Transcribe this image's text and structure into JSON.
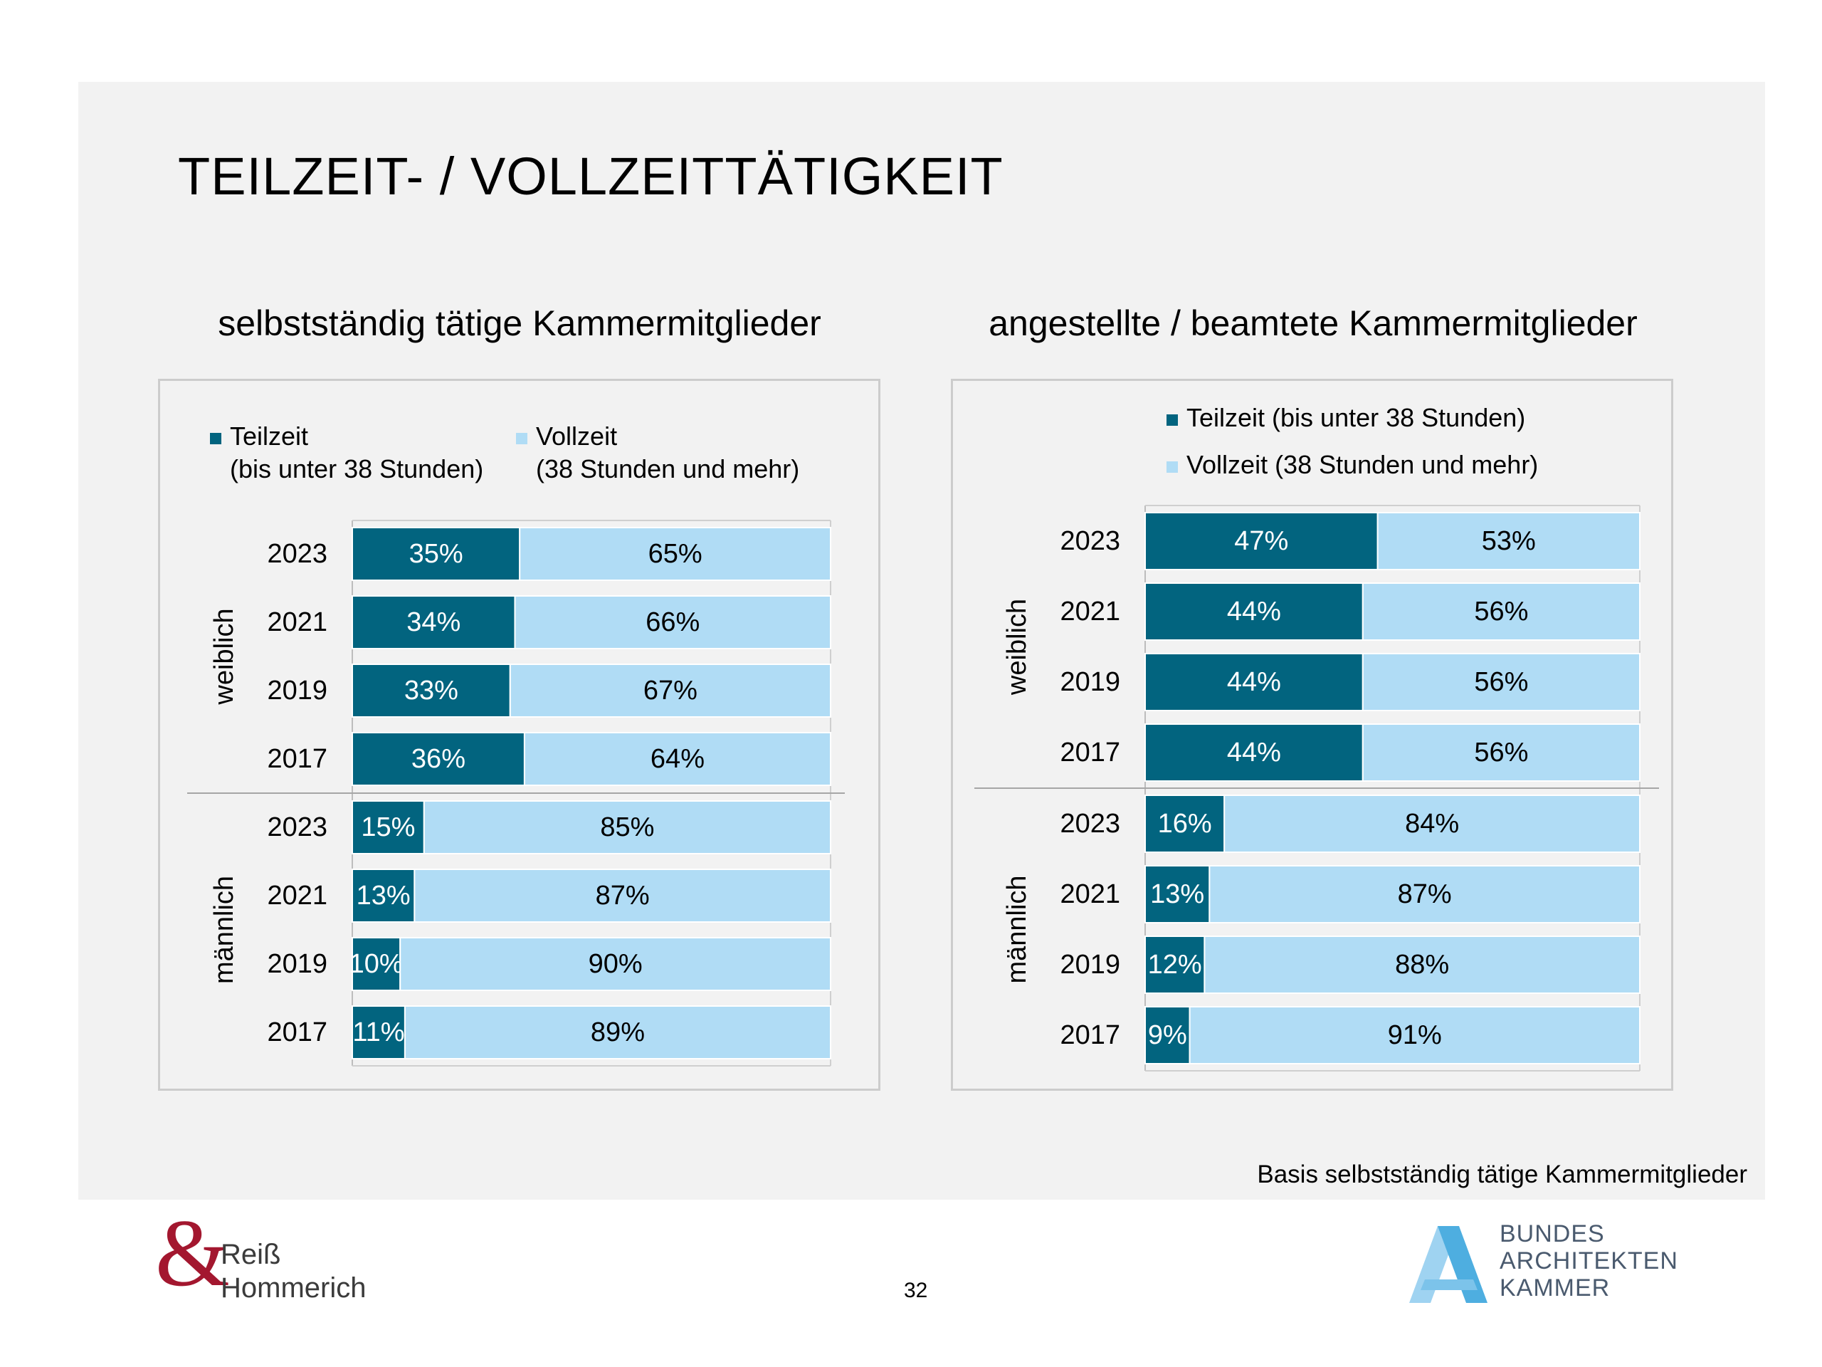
{
  "slide": {
    "title": "TEILZEIT- / VOLLZEITTÄTIGKEIT",
    "footnote": "Basis selbstständig tätige Kammermitglieder",
    "page_number": "32"
  },
  "logos": {
    "left": {
      "symbol": "&",
      "line1": "Reiß",
      "line2": "Hommerich",
      "color": "#a3172f"
    },
    "right": {
      "line1": "BUNDES",
      "line2": "ARCHITEKTEN",
      "line3": "KAMMER",
      "color": "#6bb8e3"
    }
  },
  "colors": {
    "teilzeit": "#02647f",
    "vollzeit": "#b0dcf5",
    "background": "#f2f2f2"
  },
  "chart_data": [
    {
      "type": "bar",
      "orientation": "horizontal",
      "stacked": "percent",
      "title": "selbstständig tätige Kammermitglieder",
      "legend": {
        "placement": "top",
        "entries": [
          {
            "line1": "Teilzeit",
            "line2": "(bis unter 38 Stunden)"
          },
          {
            "line1": "Vollzeit",
            "line2": "(38 Stunden und mehr)"
          }
        ]
      },
      "groups": [
        "weiblich",
        "männlich"
      ],
      "categories": [
        "2023",
        "2021",
        "2019",
        "2017",
        "2023",
        "2021",
        "2019",
        "2017"
      ],
      "series": [
        {
          "name": "Teilzeit (bis unter 38 Stunden)",
          "values": [
            35,
            34,
            33,
            36,
            15,
            13,
            10,
            11
          ],
          "labels": [
            "35%",
            "34%",
            "33%",
            "36%",
            "15%",
            "13%",
            "10%",
            "11%"
          ]
        },
        {
          "name": "Vollzeit (38 Stunden und mehr)",
          "values": [
            65,
            66,
            67,
            64,
            85,
            87,
            90,
            89
          ],
          "labels": [
            "65%",
            "66%",
            "67%",
            "64%",
            "85%",
            "87%",
            "90%",
            "89%"
          ]
        }
      ],
      "xlim": [
        0,
        100
      ]
    },
    {
      "type": "bar",
      "orientation": "horizontal",
      "stacked": "percent",
      "title": "angestellte / beamtete Kammermitglieder",
      "legend": {
        "placement": "top",
        "entries": [
          {
            "line1": "Teilzeit (bis unter 38 Stunden)",
            "line2": ""
          },
          {
            "line1": "Vollzeit (38 Stunden und mehr)",
            "line2": ""
          }
        ]
      },
      "groups": [
        "weiblich",
        "männlich"
      ],
      "categories": [
        "2023",
        "2021",
        "2019",
        "2017",
        "2023",
        "2021",
        "2019",
        "2017"
      ],
      "series": [
        {
          "name": "Teilzeit (bis unter 38 Stunden)",
          "values": [
            47,
            44,
            44,
            44,
            16,
            13,
            12,
            9
          ],
          "labels": [
            "47%",
            "44%",
            "44%",
            "44%",
            "16%",
            "13%",
            "12%",
            "9%"
          ]
        },
        {
          "name": "Vollzeit (38 Stunden und mehr)",
          "values": [
            53,
            56,
            56,
            56,
            84,
            87,
            88,
            91
          ],
          "labels": [
            "53%",
            "56%",
            "56%",
            "56%",
            "84%",
            "87%",
            "88%",
            "91%"
          ]
        }
      ],
      "xlim": [
        0,
        100
      ]
    }
  ]
}
